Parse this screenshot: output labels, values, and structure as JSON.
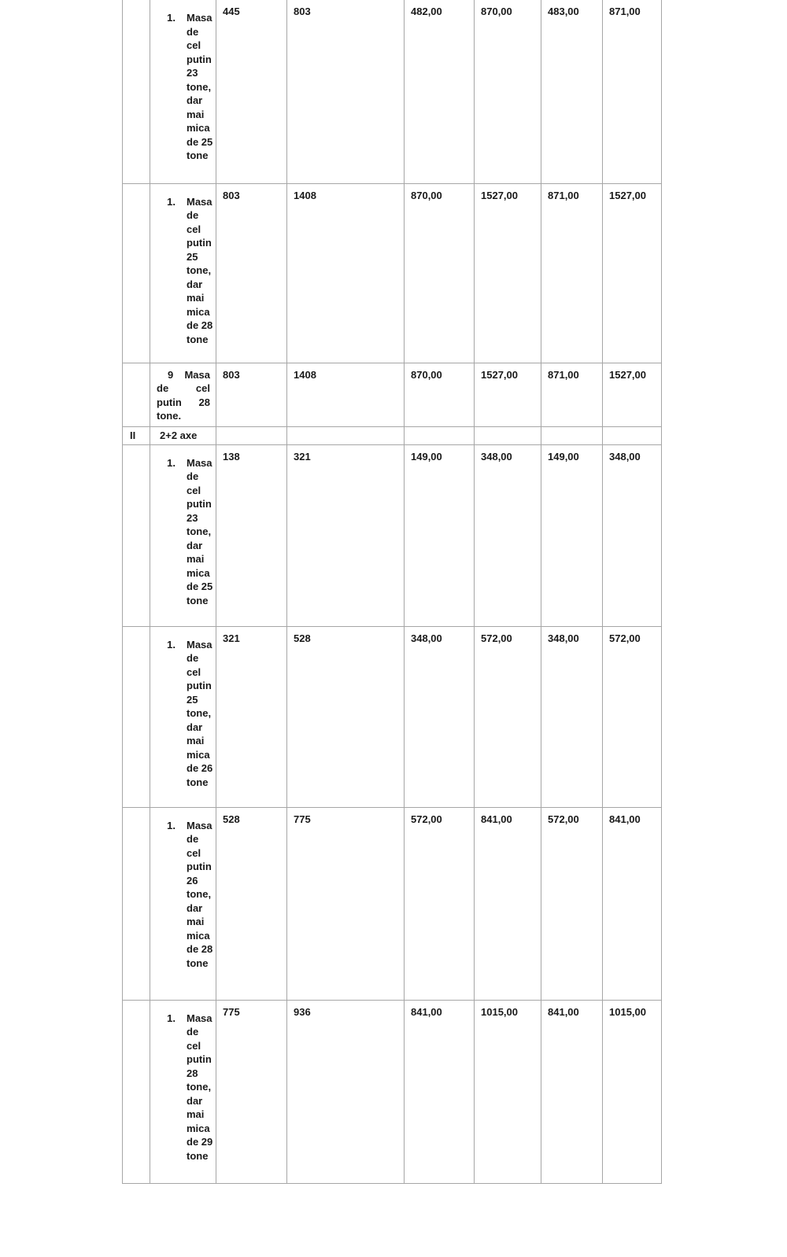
{
  "document": {
    "colors": {
      "text": "#1a1a1a",
      "border": "#a6a6a6",
      "background": "#ffffff"
    },
    "table": {
      "rows": [
        {
          "group": "",
          "marker": "1.",
          "description": "Masa de cel putin 23 tone, dar mai mica de 25 tone",
          "style": "numbered",
          "values": [
            "445",
            "803",
            "482,00",
            "870,00",
            "483,00",
            "871,00"
          ]
        },
        {
          "group": "",
          "marker": "1.",
          "description": "Masa de cel putin 25 tone, dar mai mica de 28 tone",
          "style": "numbered",
          "values": [
            "803",
            "1408",
            "870,00",
            "1527,00",
            "871,00",
            "1527,00"
          ]
        },
        {
          "group": "",
          "marker": "",
          "description": "9 Masa de cel putin 28 tone.",
          "style": "justified",
          "values": [
            "803",
            "1408",
            "870,00",
            "1527,00",
            "871,00",
            "1527,00"
          ]
        },
        {
          "group": "II",
          "marker": "",
          "description": "2+2 axe",
          "style": "plain",
          "values": [
            "",
            "",
            "",
            "",
            "",
            ""
          ]
        },
        {
          "group": "",
          "marker": "1.",
          "description": "Masa de cel putin 23 tone, dar mai mica de 25 tone",
          "style": "numbered",
          "values": [
            "138",
            "321",
            "149,00",
            "348,00",
            "149,00",
            "348,00"
          ]
        },
        {
          "group": "",
          "marker": "1.",
          "description": "Masa de cel putin 25 tone, dar mai mica de 26 tone",
          "style": "numbered",
          "values": [
            "321",
            "528",
            "348,00",
            "572,00",
            "348,00",
            "572,00"
          ]
        },
        {
          "group": "",
          "marker": "1.",
          "description": "Masa de cel putin 26 tone, dar mai mica de 28 tone",
          "style": "numbered",
          "values": [
            "528",
            "775",
            "572,00",
            "841,00",
            "572,00",
            "841,00"
          ]
        },
        {
          "group": "",
          "marker": "1.",
          "description": "Masa de cel putin 28 tone, dar mai mica de 29 tone",
          "style": "numbered",
          "values": [
            "775",
            "936",
            "841,00",
            "1015,00",
            "841,00",
            "1015,00"
          ]
        }
      ]
    }
  }
}
